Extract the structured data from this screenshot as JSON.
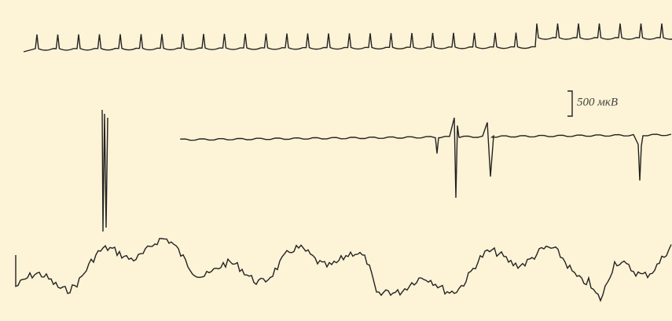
{
  "scale_label": "500 мкВ"
}
